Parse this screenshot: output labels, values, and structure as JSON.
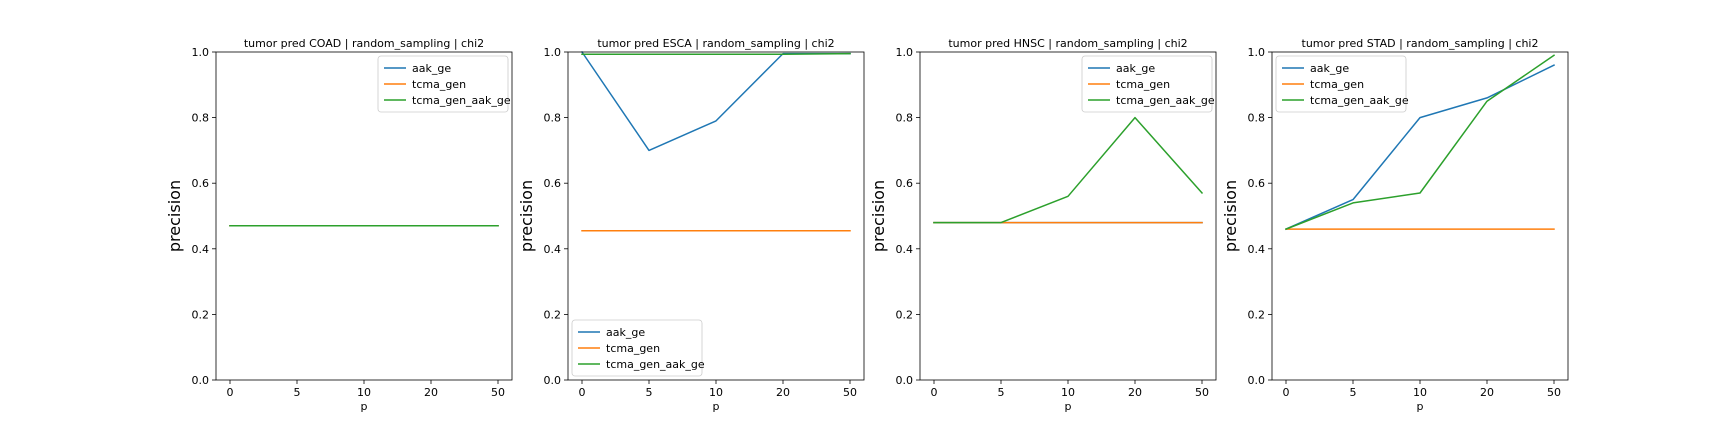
{
  "chart_data": [
    {
      "type": "line",
      "title": "tumor pred COAD | random_sampling | chi2",
      "xlabel": "p",
      "ylabel": "precision",
      "categories": [
        "0",
        "5",
        "10",
        "20",
        "50"
      ],
      "ylim": [
        0,
        1
      ],
      "yticks": [
        "0.0",
        "0.2",
        "0.4",
        "0.6",
        "0.8",
        "1.0"
      ],
      "grid": false,
      "legend_position": "upper right",
      "series": [
        {
          "name": "aak_ge",
          "color": "#1f77b4",
          "values": [
            0.47,
            0.47,
            0.47,
            0.47,
            0.47
          ]
        },
        {
          "name": "tcma_gen",
          "color": "#ff7f0e",
          "values": [
            0.47,
            0.47,
            0.47,
            0.47,
            0.47
          ]
        },
        {
          "name": "tcma_gen_aak_ge",
          "color": "#2ca02c",
          "values": [
            0.47,
            0.47,
            0.47,
            0.47,
            0.47
          ]
        }
      ]
    },
    {
      "type": "line",
      "title": "tumor pred ESCA | random_sampling | chi2",
      "xlabel": "p",
      "ylabel": "precision",
      "categories": [
        "0",
        "5",
        "10",
        "20",
        "50"
      ],
      "ylim": [
        0,
        1
      ],
      "yticks": [
        "0.0",
        "0.2",
        "0.4",
        "0.6",
        "0.8",
        "1.0"
      ],
      "grid": false,
      "legend_position": "lower left",
      "series": [
        {
          "name": "aak_ge",
          "color": "#1f77b4",
          "values": [
            1.0,
            0.7,
            0.79,
            0.995,
            0.995
          ]
        },
        {
          "name": "tcma_gen",
          "color": "#ff7f0e",
          "values": [
            0.455,
            0.455,
            0.455,
            0.455,
            0.455
          ]
        },
        {
          "name": "tcma_gen_aak_ge",
          "color": "#2ca02c",
          "values": [
            0.993,
            0.993,
            0.993,
            0.993,
            0.995
          ]
        }
      ]
    },
    {
      "type": "line",
      "title": "tumor pred HNSC | random_sampling | chi2",
      "xlabel": "p",
      "ylabel": "precision",
      "categories": [
        "0",
        "5",
        "10",
        "20",
        "50"
      ],
      "ylim": [
        0,
        1
      ],
      "yticks": [
        "0.0",
        "0.2",
        "0.4",
        "0.6",
        "0.8",
        "1.0"
      ],
      "grid": false,
      "legend_position": "upper right",
      "series": [
        {
          "name": "aak_ge",
          "color": "#1f77b4",
          "values": [
            0.48,
            0.48,
            0.48,
            0.48,
            0.48
          ]
        },
        {
          "name": "tcma_gen",
          "color": "#ff7f0e",
          "values": [
            0.48,
            0.48,
            0.48,
            0.48,
            0.48
          ]
        },
        {
          "name": "tcma_gen_aak_ge",
          "color": "#2ca02c",
          "values": [
            0.48,
            0.48,
            0.56,
            0.8,
            0.57
          ]
        }
      ]
    },
    {
      "type": "line",
      "title": "tumor pred STAD | random_sampling | chi2",
      "xlabel": "p",
      "ylabel": "precision",
      "categories": [
        "0",
        "5",
        "10",
        "20",
        "50"
      ],
      "ylim": [
        0,
        1
      ],
      "yticks": [
        "0.0",
        "0.2",
        "0.4",
        "0.6",
        "0.8",
        "1.0"
      ],
      "grid": false,
      "legend_position": "upper left",
      "series": [
        {
          "name": "aak_ge",
          "color": "#1f77b4",
          "values": [
            0.46,
            0.55,
            0.8,
            0.86,
            0.96
          ]
        },
        {
          "name": "tcma_gen",
          "color": "#ff7f0e",
          "values": [
            0.46,
            0.46,
            0.46,
            0.46,
            0.46
          ]
        },
        {
          "name": "tcma_gen_aak_ge",
          "color": "#2ca02c",
          "values": [
            0.46,
            0.54,
            0.57,
            0.85,
            0.99
          ]
        }
      ]
    }
  ]
}
